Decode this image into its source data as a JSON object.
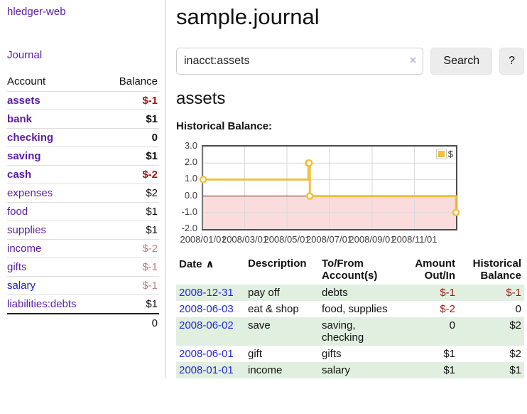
{
  "app": {
    "brand": "hledger-web",
    "nav_journal": "Journal"
  },
  "sidebar": {
    "account_header": "Account",
    "balance_header": "Balance",
    "accounts": [
      {
        "name": "assets",
        "balance": "$-1",
        "depth": 1,
        "bold": true,
        "balance_style": "neg",
        "link_style": "purple"
      },
      {
        "name": "bank",
        "balance": "$1",
        "depth": 2,
        "bold": true,
        "balance_style": "pos",
        "link_style": "purple"
      },
      {
        "name": "checking",
        "balance": "0",
        "depth": 3,
        "bold": true,
        "balance_style": "pos",
        "link_style": "purple"
      },
      {
        "name": "saving",
        "balance": "$1",
        "depth": 3,
        "bold": true,
        "balance_style": "pos",
        "link_style": "purple"
      },
      {
        "name": "cash",
        "balance": "$-2",
        "depth": 2,
        "bold": true,
        "balance_style": "neg",
        "link_style": "purple"
      },
      {
        "name": "expenses",
        "balance": "$2",
        "depth": 1,
        "bold": false,
        "balance_style": "pos",
        "link_style": "purple"
      },
      {
        "name": "food",
        "balance": "$1",
        "depth": 2,
        "bold": false,
        "balance_style": "pos",
        "link_style": "purple"
      },
      {
        "name": "supplies",
        "balance": "$1",
        "depth": 2,
        "bold": false,
        "balance_style": "pos",
        "link_style": "purple"
      },
      {
        "name": "income",
        "balance": "$-2",
        "depth": 1,
        "bold": false,
        "balance_style": "neg-faded",
        "link_style": "purple"
      },
      {
        "name": "gifts",
        "balance": "$-1",
        "depth": 2,
        "bold": false,
        "balance_style": "neg-faded",
        "link_style": "purple"
      },
      {
        "name": "salary",
        "balance": "$-1",
        "depth": 2,
        "bold": false,
        "balance_style": "neg-faded",
        "link_style": "blue"
      },
      {
        "name": "liabilities:debts",
        "balance": "$1",
        "depth": 1,
        "bold": false,
        "balance_style": "pos",
        "link_style": "purple"
      }
    ],
    "total": "0"
  },
  "main": {
    "title": "sample.journal",
    "search": {
      "value": "inacct:assets",
      "clear_icon": "×",
      "search_button": "Search",
      "help_button": "?"
    },
    "account_title": "assets",
    "chart_heading": "Historical Balance:"
  },
  "chart_data": {
    "type": "line",
    "step": true,
    "title": "Historical Balance",
    "series": [
      {
        "name": "$",
        "points": [
          {
            "date": "2008-01-01",
            "value": 1
          },
          {
            "date": "2008-06-01",
            "value": 2
          },
          {
            "date": "2008-06-02",
            "value": 2
          },
          {
            "date": "2008-06-03",
            "value": 0
          },
          {
            "date": "2008-12-31",
            "value": -1
          }
        ]
      }
    ],
    "x_range": [
      "2008-01-01",
      "2008-12-31"
    ],
    "x_tick_labels": [
      "2008/01/01",
      "2008/03/01",
      "2008/05/01",
      "2008/07/01",
      "2008/09/01",
      "2008/11/01"
    ],
    "y_tick_labels": [
      "3.0",
      "2.0",
      "1.0",
      "0.0",
      "-1.0",
      "-2.0"
    ],
    "ylim": [
      -2,
      3
    ],
    "grid": true,
    "legend": {
      "label": "$",
      "position": "top-right"
    },
    "colors": {
      "line": "#edc240",
      "marker_fill": "#ffffff",
      "negative_area": "#fbdcdc",
      "zero_line": "#8b1a10",
      "grid": "#d9d9d9",
      "border": "#4d4d4d"
    }
  },
  "register": {
    "headers": {
      "date": "Date",
      "sort_indicator": "∧",
      "description": "Description",
      "tofrom": "To/From Account(s)",
      "amount": "Amount Out/In",
      "balance": "Historical Balance"
    },
    "rows": [
      {
        "date": "2008-12-31",
        "description": "pay off",
        "accounts": "debts",
        "amount": "$-1",
        "amount_style": "neg",
        "balance": "$-1",
        "balance_style": "neg"
      },
      {
        "date": "2008-06-03",
        "description": "eat & shop",
        "accounts": "food, supplies",
        "amount": "$-2",
        "amount_style": "neg",
        "balance": "0",
        "balance_style": "pos"
      },
      {
        "date": "2008-06-02",
        "description": "save",
        "accounts": "saving, checking",
        "amount": "0",
        "amount_style": "pos",
        "balance": "$2",
        "balance_style": "pos"
      },
      {
        "date": "2008-06-01",
        "description": "gift",
        "accounts": "gifts",
        "amount": "$1",
        "amount_style": "pos",
        "balance": "$2",
        "balance_style": "pos"
      },
      {
        "date": "2008-01-01",
        "description": "income",
        "accounts": "salary",
        "amount": "$1",
        "amount_style": "pos",
        "balance": "$1",
        "balance_style": "pos"
      }
    ]
  }
}
